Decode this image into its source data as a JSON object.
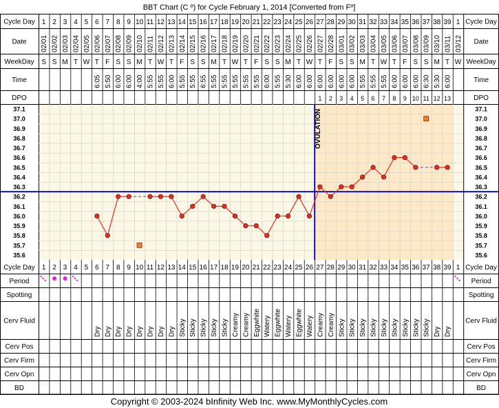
{
  "title": "BBT Chart (C º) for Cycle February 1, 2014  [Converted from Fº]",
  "copyright": "Copyright © 2003-2024 bInfinity Web Inc.     www.MyMonthlyCycles.com",
  "row_labels": {
    "cycle_day": "Cycle Day",
    "date": "Date",
    "weekday": "WeekDay",
    "time": "Time",
    "dpo": "DPO",
    "period": "Period",
    "spotting": "Spotting",
    "cerv_fluid": "Cerv Fluid",
    "cerv_pos": "Cerv Pos",
    "cerv_firm": "Cerv Firm",
    "cerv_opn": "Cerv Opn",
    "bd": "BD"
  },
  "cycle_days": [
    "1",
    "2",
    "3",
    "4",
    "5",
    "6",
    "7",
    "8",
    "9",
    "10",
    "11",
    "12",
    "13",
    "14",
    "15",
    "16",
    "17",
    "18",
    "19",
    "20",
    "21",
    "22",
    "23",
    "24",
    "25",
    "26",
    "27",
    "28",
    "29",
    "30",
    "31",
    "32",
    "33",
    "34",
    "35",
    "36",
    "37",
    "38",
    "39",
    "1"
  ],
  "dates": [
    "02/01",
    "02/02",
    "02/03",
    "02/04",
    "02/05",
    "02/06",
    "02/07",
    "02/08",
    "02/09",
    "02/10",
    "02/11",
    "02/12",
    "02/13",
    "02/14",
    "02/15",
    "02/16",
    "02/17",
    "02/18",
    "02/19",
    "02/20",
    "02/21",
    "02/22",
    "02/23",
    "02/24",
    "02/25",
    "02/26",
    "02/27",
    "02/28",
    "03/01",
    "03/02",
    "03/03",
    "03/04",
    "03/05",
    "03/06",
    "03/07",
    "03/08",
    "03/09",
    "03/10",
    "03/11",
    "03/12"
  ],
  "weekdays": [
    "S",
    "S",
    "M",
    "T",
    "W",
    "T",
    "F",
    "S",
    "S",
    "M",
    "T",
    "W",
    "T",
    "F",
    "S",
    "S",
    "M",
    "T",
    "W",
    "T",
    "F",
    "S",
    "S",
    "M",
    "T",
    "W",
    "T",
    "F",
    "S",
    "S",
    "M",
    "T",
    "W",
    "T",
    "F",
    "S",
    "S",
    "M",
    "T",
    "W"
  ],
  "times": [
    "",
    "",
    "",
    "",
    "",
    "6:05",
    "5:50",
    "6:00",
    "6:00",
    "4:00",
    "5:55",
    "5:55",
    "6:00",
    "5:55",
    "5:55",
    "6:55",
    "5:55",
    "5:55",
    "5:55",
    "5:55",
    "5:55",
    "6:00",
    "5:55",
    "5:30",
    "6:00",
    "6:00",
    "6:00",
    "6:00",
    "6:00",
    "6:00",
    "5:55",
    "5:55",
    "5:55",
    "6:00",
    "6:00",
    "6:00",
    "6:30",
    "5:30",
    "6:00",
    ""
  ],
  "dpo": [
    "",
    "",
    "",
    "",
    "",
    "",
    "",
    "",
    "",
    "",
    "",
    "",
    "",
    "",
    "",
    "",
    "",
    "",
    "",
    "",
    "",
    "",
    "",
    "",
    "",
    "",
    "1",
    "2",
    "3",
    "4",
    "5",
    "6",
    "7",
    "8",
    "9",
    "10",
    "11",
    "12",
    "13",
    ""
  ],
  "period": [
    "spotting",
    "heavy",
    "heavy",
    "spotting",
    "",
    "",
    "",
    "",
    "",
    "",
    "",
    "",
    "",
    "",
    "",
    "",
    "",
    "",
    "",
    "",
    "",
    "",
    "",
    "",
    "",
    "",
    "",
    "",
    "",
    "",
    "",
    "",
    "",
    "",
    "",
    "",
    "",
    "",
    "",
    "spotting"
  ],
  "cerv_fluid": [
    "",
    "",
    "",
    "",
    "",
    "Dry",
    "Dry",
    "Dry",
    "Dry",
    "Dry",
    "Dry",
    "Dry",
    "Dry",
    "Sticky",
    "Sticky",
    "Sticky",
    "Sticky",
    "Sticky",
    "Creamy",
    "Creamy",
    "Eggwhite",
    "Watery",
    "Eggwhite",
    "Watery",
    "Eggwhite",
    "Watery",
    "Creamy",
    "Creamy",
    "Sticky",
    "Sticky",
    "Sticky",
    "Sticky",
    "Sticky",
    "Sticky",
    "Sticky",
    "Sticky",
    "Sticky",
    "Dry",
    "Dry",
    ""
  ],
  "chart_data": {
    "type": "line",
    "ylim": [
      35.6,
      37.1
    ],
    "y_ticks": [
      "37.1",
      "37.0",
      "36.9",
      "36.8",
      "36.7",
      "36.6",
      "36.5",
      "36.4",
      "36.3",
      "36.2",
      "36.1",
      "36.0",
      "35.9",
      "35.8",
      "35.7",
      "35.6"
    ],
    "coverline": 36.25,
    "ovulation_day": 26,
    "ovulation_label": "OVULATION",
    "series": [
      {
        "x": [
          6,
          7,
          8,
          9,
          11,
          12,
          13,
          14,
          15,
          16,
          17,
          18,
          19,
          20,
          21,
          22,
          23,
          24,
          25,
          26,
          27,
          28,
          29,
          30,
          31,
          32,
          33,
          34,
          35,
          36,
          38,
          39
        ],
        "values": [
          36.0,
          35.8,
          36.2,
          36.2,
          36.2,
          36.2,
          36.2,
          36.0,
          36.1,
          36.2,
          36.1,
          36.1,
          36.0,
          35.9,
          35.9,
          35.8,
          36.0,
          36.0,
          36.2,
          36.0,
          36.3,
          36.2,
          36.3,
          36.3,
          36.4,
          36.5,
          36.4,
          36.6,
          36.6,
          36.5,
          36.5,
          36.5
        ]
      }
    ],
    "discarded_points": [
      {
        "day": 10,
        "value": 35.7
      },
      {
        "day": 37,
        "value": 37.0
      }
    ],
    "colors": {
      "grid_bg": "#fcf8e8",
      "luteal_bg": "#fde8c8",
      "grid_line": "#d8d8c8",
      "point_fill": "#e03020",
      "point_edge": "#801010",
      "line": "#e03020",
      "gap_line": "#6060d0",
      "coverline": "#1010c0",
      "ovulation_line": "#1010c0",
      "discarded_fill": "#f08030",
      "period_dot": "#e020e0"
    }
  }
}
